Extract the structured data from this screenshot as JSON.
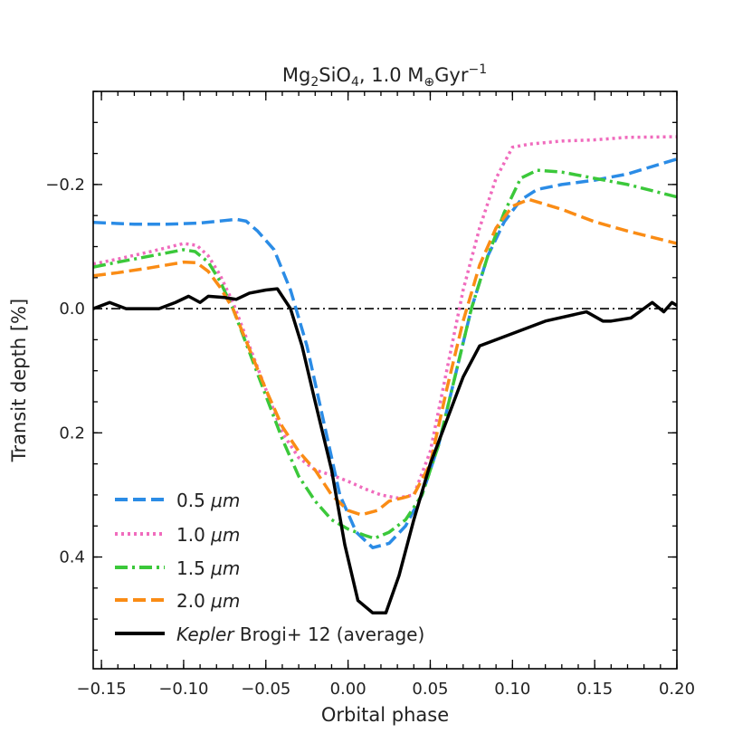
{
  "chart_data": {
    "type": "line",
    "title": {
      "prefix": "Mg",
      "sub1": "2",
      "mid": "SiO",
      "sub2": "4",
      "suffix": ", 1.0 M",
      "sub3": "⊕",
      "unit": "Gyr",
      "sup": "−1"
    },
    "xlabel": "Orbital phase",
    "ylabel": "Transit depth [%]",
    "xlim": [
      -0.155,
      0.2
    ],
    "ylim": [
      0.58,
      -0.35
    ],
    "y_inverted": true,
    "xticks": [
      -0.15,
      -0.1,
      -0.05,
      0.0,
      0.05,
      0.1,
      0.15,
      0.2
    ],
    "xtick_labels": [
      "−0.15",
      "−0.10",
      "−0.05",
      "0.00",
      "0.05",
      "0.10",
      "0.15",
      "0.20"
    ],
    "yticks": [
      -0.2,
      0.0,
      0.2,
      0.4
    ],
    "ytick_labels": [
      "−0.2",
      "0.0",
      "0.2",
      "0.4"
    ],
    "reference_line": 0.0,
    "legend_position": "lower-left",
    "series": [
      {
        "name": "0.5",
        "unit": "μm",
        "color": "#2b8ce6",
        "style": "dashed",
        "x": [
          -0.155,
          -0.13,
          -0.11,
          -0.09,
          -0.075,
          -0.068,
          -0.062,
          -0.055,
          -0.045,
          -0.035,
          -0.025,
          -0.015,
          -0.005,
          0.005,
          0.015,
          0.025,
          0.035,
          0.045,
          0.055,
          0.065,
          0.075,
          0.085,
          0.095,
          0.105,
          0.115,
          0.13,
          0.15,
          0.17,
          0.2
        ],
        "values": [
          -0.139,
          -0.136,
          -0.136,
          -0.138,
          -0.142,
          -0.144,
          -0.141,
          -0.125,
          -0.095,
          -0.03,
          0.06,
          0.18,
          0.3,
          0.36,
          0.385,
          0.378,
          0.35,
          0.3,
          0.22,
          0.11,
          0.0,
          -0.085,
          -0.14,
          -0.175,
          -0.192,
          -0.2,
          -0.207,
          -0.217,
          -0.241
        ]
      },
      {
        "name": "1.0",
        "unit": "μm",
        "color": "#f06bbd",
        "style": "dotted",
        "x": [
          -0.155,
          -0.14,
          -0.12,
          -0.1,
          -0.092,
          -0.085,
          -0.078,
          -0.07,
          -0.06,
          -0.05,
          -0.04,
          -0.03,
          -0.02,
          -0.01,
          0.0,
          0.01,
          0.02,
          0.03,
          0.04,
          0.05,
          0.06,
          0.07,
          0.08,
          0.09,
          0.1,
          0.11,
          0.13,
          0.15,
          0.17,
          0.2
        ],
        "values": [
          -0.072,
          -0.08,
          -0.092,
          -0.105,
          -0.102,
          -0.085,
          -0.055,
          -0.01,
          0.06,
          0.13,
          0.2,
          0.24,
          0.26,
          0.268,
          0.278,
          0.29,
          0.3,
          0.305,
          0.3,
          0.23,
          0.1,
          -0.03,
          -0.13,
          -0.21,
          -0.26,
          -0.265,
          -0.27,
          -0.272,
          -0.276,
          -0.277
        ]
      },
      {
        "name": "1.5",
        "unit": "μm",
        "color": "#3bc83a",
        "style": "dashdot",
        "x": [
          -0.155,
          -0.14,
          -0.12,
          -0.1,
          -0.093,
          -0.085,
          -0.078,
          -0.07,
          -0.06,
          -0.05,
          -0.04,
          -0.03,
          -0.02,
          -0.01,
          0.0,
          0.01,
          0.016,
          0.025,
          0.035,
          0.045,
          0.055,
          0.065,
          0.075,
          0.085,
          0.095,
          0.105,
          0.115,
          0.13,
          0.15,
          0.17,
          0.2
        ],
        "values": [
          -0.067,
          -0.075,
          -0.085,
          -0.095,
          -0.092,
          -0.075,
          -0.045,
          0.0,
          0.07,
          0.14,
          0.21,
          0.27,
          0.31,
          0.34,
          0.355,
          0.365,
          0.37,
          0.36,
          0.34,
          0.3,
          0.22,
          0.11,
          0.0,
          -0.085,
          -0.155,
          -0.21,
          -0.223,
          -0.22,
          -0.21,
          -0.2,
          -0.18
        ]
      },
      {
        "name": "2.0",
        "unit": "μm",
        "color": "#fa8c15",
        "style": "dashed",
        "x": [
          -0.155,
          -0.14,
          -0.12,
          -0.1,
          -0.092,
          -0.085,
          -0.078,
          -0.07,
          -0.06,
          -0.05,
          -0.04,
          -0.03,
          -0.02,
          -0.01,
          0.0,
          0.008,
          0.018,
          0.025,
          0.033,
          0.04,
          0.05,
          0.06,
          0.07,
          0.08,
          0.09,
          0.1,
          0.11,
          0.13,
          0.15,
          0.17,
          0.2
        ],
        "values": [
          -0.053,
          -0.058,
          -0.066,
          -0.075,
          -0.074,
          -0.06,
          -0.035,
          0.0,
          0.065,
          0.13,
          0.19,
          0.23,
          0.26,
          0.3,
          0.325,
          0.332,
          0.325,
          0.31,
          0.305,
          0.3,
          0.25,
          0.13,
          0.02,
          -0.07,
          -0.13,
          -0.165,
          -0.176,
          -0.16,
          -0.14,
          -0.125,
          -0.105
        ]
      },
      {
        "name_emph": "Kepler",
        "name_rest": " Brogi+ 12 (average)",
        "color": "#000000",
        "style": "solid",
        "x": [
          -0.155,
          -0.145,
          -0.135,
          -0.125,
          -0.115,
          -0.105,
          -0.097,
          -0.09,
          -0.085,
          -0.075,
          -0.068,
          -0.06,
          -0.05,
          -0.043,
          -0.035,
          -0.028,
          -0.02,
          -0.01,
          -0.002,
          0.006,
          0.015,
          0.023,
          0.031,
          0.04,
          0.05,
          0.06,
          0.07,
          0.08,
          0.095,
          0.12,
          0.145,
          0.155,
          0.16,
          0.172,
          0.185,
          0.192,
          0.197,
          0.2
        ],
        "values": [
          0.0,
          -0.01,
          0.0,
          0.0,
          0.0,
          -0.01,
          -0.02,
          -0.01,
          -0.02,
          -0.018,
          -0.015,
          -0.025,
          -0.03,
          -0.032,
          0.0,
          0.06,
          0.15,
          0.26,
          0.38,
          0.47,
          0.49,
          0.49,
          0.43,
          0.34,
          0.25,
          0.18,
          0.11,
          0.06,
          0.045,
          0.02,
          0.005,
          0.02,
          0.02,
          0.015,
          -0.01,
          0.005,
          -0.01,
          -0.005
        ]
      }
    ]
  }
}
